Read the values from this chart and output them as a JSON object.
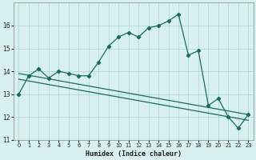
{
  "xlabel": "Humidex (Indice chaleur)",
  "x": [
    0,
    1,
    2,
    3,
    4,
    5,
    6,
    7,
    8,
    9,
    10,
    11,
    12,
    13,
    14,
    15,
    16,
    17,
    18,
    19,
    20,
    21,
    22,
    23
  ],
  "y": [
    13.0,
    13.8,
    14.1,
    13.7,
    14.0,
    13.9,
    13.8,
    13.8,
    14.4,
    15.1,
    15.5,
    15.7,
    15.5,
    15.9,
    16.0,
    16.2,
    16.5,
    14.7,
    14.9,
    12.5,
    12.8,
    12.0,
    11.5,
    12.1
  ],
  "trend1_start": 13.9,
  "trend1_end": 12.1,
  "trend2_start": 13.65,
  "trend2_end": 11.85,
  "line_color": "#1a6b5a",
  "bg_color": "#d8f0f0",
  "grid_color": "#aed4d4",
  "ylim": [
    11,
    17
  ],
  "xlim": [
    0,
    23
  ],
  "yticks": [
    11,
    12,
    13,
    14,
    15,
    16
  ],
  "xticks": [
    0,
    1,
    2,
    3,
    4,
    5,
    6,
    7,
    8,
    9,
    10,
    11,
    12,
    13,
    14,
    15,
    16,
    17,
    18,
    19,
    20,
    21,
    22,
    23
  ]
}
